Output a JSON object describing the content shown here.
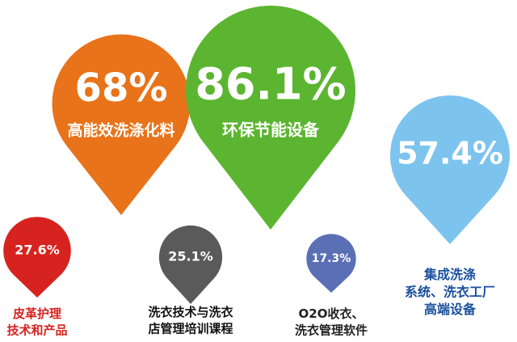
{
  "chart_data": {
    "type": "pin",
    "categories": [
      "高能效洗涤化料",
      "环保节能设备",
      "集成洗涤系统、洗衣工厂高端设备",
      "皮革护理技术和产品",
      "洗衣技术与洗衣店管理培训课程",
      "O2O收衣、洗衣管理软件"
    ],
    "values": [
      68,
      86.1,
      57.4,
      27.6,
      25.1,
      17.3
    ],
    "value_labels": [
      "68%",
      "86.1%",
      "57.4%",
      "27.6%",
      "25.1%",
      "17.3%"
    ],
    "colors": [
      "#e8731a",
      "#5cb531",
      "#7cc4ee",
      "#d7231f",
      "#5a5a5a",
      "#5b6fb5"
    ]
  }
}
